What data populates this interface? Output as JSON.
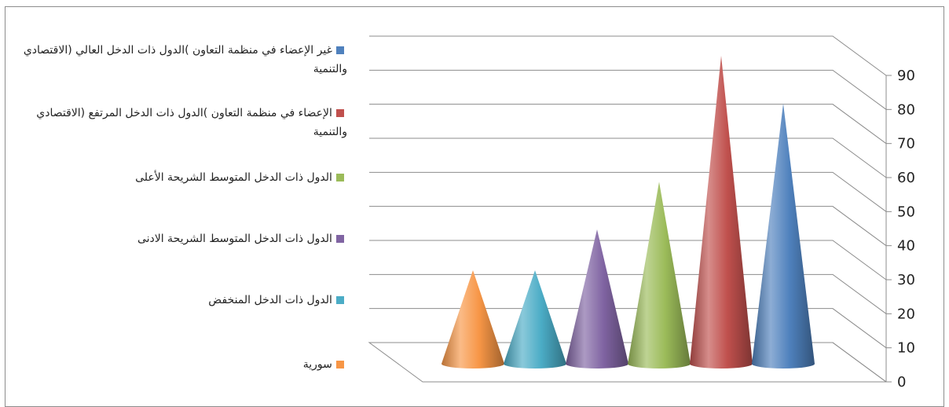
{
  "chart_data": {
    "type": "bar",
    "style": "3d-cone",
    "series": [
      {
        "name": "سورية",
        "value": 27,
        "color": "#f79646"
      },
      {
        "name": "الدول ذات الدخل المنخفض",
        "value": 27,
        "color": "#4bacc6"
      },
      {
        "name": "الدول ذات الدخل المتوسط الشريحة الادنى",
        "value": 39,
        "color": "#8064a2"
      },
      {
        "name": "الدول ذات الدخل المتوسط الشريحة الأعلى",
        "value": 53,
        "color": "#9bbb59"
      },
      {
        "name": "الدول ذات الدخل المرتفع )الإعضاء في منظمة التعاون الاقتصادي والتنمية(",
        "value": 90,
        "color": "#c0504d"
      },
      {
        "name": "الدول ذات الدخل العالي )غير الإعضاء في منظمة التعاون الاقتصادي والتنمية(",
        "value": 76,
        "color": "#4f81bd"
      }
    ],
    "y_ticks": [
      "0",
      "10",
      "20",
      "30",
      "40",
      "50",
      "60",
      "70",
      "80",
      "90"
    ],
    "ylim": [
      0,
      90
    ],
    "grid": true,
    "legend_position": "left"
  },
  "legend": [
    {
      "label": "غير الإعضاء في منظمة التعاون )الدول ذات الدخل العالي (الاقتصادي والتنمية",
      "color": "#4f81bd"
    },
    {
      "label": "الإعضاء في منظمة التعاون )الدول ذات الدخل المرتفع (الاقتصادي والتنمية",
      "color": "#c0504d"
    },
    {
      "label": "الدول ذات الدخل المتوسط الشريحة الأعلى",
      "color": "#9bbb59"
    },
    {
      "label": "الدول ذات الدخل المتوسط الشريحة الادنى",
      "color": "#8064a2"
    },
    {
      "label": "الدول ذات الدخل المنخفض",
      "color": "#4bacc6"
    },
    {
      "label": "سورية",
      "color": "#f79646"
    }
  ]
}
